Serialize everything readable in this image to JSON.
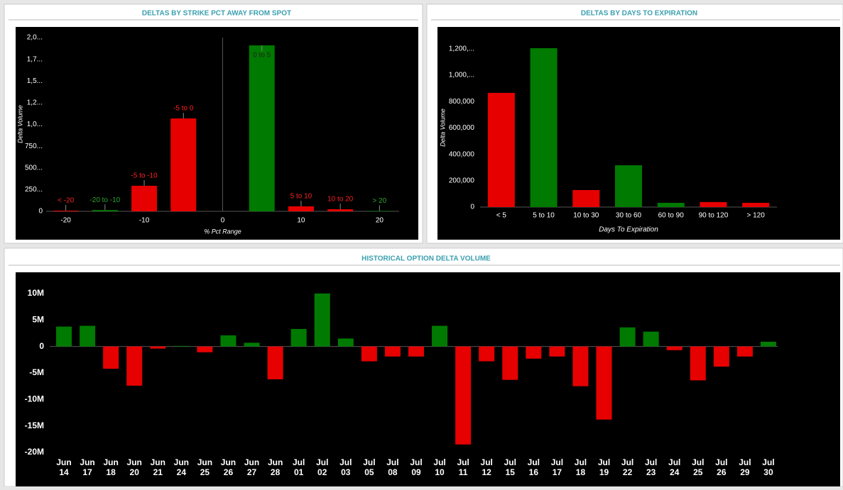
{
  "chart_data": [
    {
      "type": "bar",
      "title": "DELTAS BY STRIKE PCT AWAY FROM SPOT",
      "x_label": "% Pct Range",
      "y_label": "Delta Volume",
      "x": [
        -20,
        -15,
        -10,
        -5,
        5,
        10,
        15,
        20
      ],
      "categories": [
        "< -20",
        "-20 to -10",
        "-5 to -10",
        "-5 to 0",
        "0 to 5",
        "5 to 10",
        "10 to 20",
        "> 20"
      ],
      "values": [
        8000,
        15000,
        294000,
        1069000,
        1910000,
        57000,
        24000,
        5000
      ],
      "colors": [
        "#e60000",
        "#007a00",
        "#e60000",
        "#e60000",
        "#007a00",
        "#e60000",
        "#e60000",
        "#007a00"
      ],
      "xlim": [
        -22.5,
        22.5
      ],
      "xticks": [
        -20,
        -10,
        0,
        10,
        20
      ],
      "ylim": [
        0,
        2000000
      ],
      "yticks": [
        0,
        {
          "value": 250000,
          "label": "250..."
        },
        {
          "value": 500000,
          "label": "500..."
        },
        {
          "value": 750000,
          "label": "750..."
        },
        {
          "value": 1000000,
          "label": "1,0..."
        },
        {
          "value": 1250000,
          "label": "1,2..."
        },
        {
          "value": 1500000,
          "label": "1,5..."
        },
        {
          "value": 1750000,
          "label": "1,7..."
        },
        {
          "value": 2000000,
          "label": "2,0..."
        }
      ]
    },
    {
      "type": "bar",
      "title": "DELTAS BY DAYS TO EXPIRATION",
      "x_label": "Days To Expiration",
      "y_label": "Delta Volume",
      "categories": [
        "< 5",
        "5 to 10",
        "10 to 30",
        "30 to 60",
        "60 to 90",
        "90 to 120",
        "> 120"
      ],
      "values": [
        866000,
        1205000,
        129000,
        317000,
        32000,
        38000,
        32000
      ],
      "colors": [
        "#e60000",
        "#007a00",
        "#e60000",
        "#007a00",
        "#007a00",
        "#e60000",
        "#e60000"
      ],
      "ylim": [
        0,
        1280000
      ],
      "yticks": [
        0,
        {
          "value": 200000,
          "label": "200,000"
        },
        {
          "value": 400000,
          "label": "400,000"
        },
        {
          "value": 600000,
          "label": "600,000"
        },
        {
          "value": 800000,
          "label": "800,000"
        },
        {
          "value": 1000000,
          "label": "1,000,..."
        },
        {
          "value": 1200000,
          "label": "1,200,..."
        }
      ]
    },
    {
      "type": "bar",
      "title": "HISTORICAL OPTION DELTA VOLUME",
      "categories": [
        [
          "Jun",
          "14"
        ],
        [
          "Jun",
          "17"
        ],
        [
          "Jun",
          "18"
        ],
        [
          "Jun",
          "20"
        ],
        [
          "Jun",
          "21"
        ],
        [
          "Jun",
          "24"
        ],
        [
          "Jun",
          "25"
        ],
        [
          "Jun",
          "26"
        ],
        [
          "Jun",
          "27"
        ],
        [
          "Jun",
          "28"
        ],
        [
          "Jul",
          "01"
        ],
        [
          "Jul",
          "02"
        ],
        [
          "Jul",
          "03"
        ],
        [
          "Jul",
          "05"
        ],
        [
          "Jul",
          "08"
        ],
        [
          "Jul",
          "09"
        ],
        [
          "Jul",
          "10"
        ],
        [
          "Jul",
          "11"
        ],
        [
          "Jul",
          "12"
        ],
        [
          "Jul",
          "15"
        ],
        [
          "Jul",
          "16"
        ],
        [
          "Jul",
          "17"
        ],
        [
          "Jul",
          "18"
        ],
        [
          "Jul",
          "19"
        ],
        [
          "Jul",
          "22"
        ],
        [
          "Jul",
          "23"
        ],
        [
          "Jul",
          "24"
        ],
        [
          "Jul",
          "25"
        ],
        [
          "Jul",
          "26"
        ],
        [
          "Jul",
          "29"
        ],
        [
          "Jul",
          "30"
        ]
      ],
      "values": [
        3750000,
        3900000,
        -4200000,
        -7400000,
        -400000,
        100000,
        -1100000,
        2100000,
        700000,
        -6200000,
        3300000,
        10000000,
        1500000,
        -2800000,
        -1900000,
        -1900000,
        3900000,
        -18500000,
        -2800000,
        -6300000,
        -2300000,
        -1900000,
        -7500000,
        -13800000,
        3600000,
        2800000,
        -700000,
        -6400000,
        -3800000,
        -1900000,
        900000
      ],
      "positive_color": "#007a00",
      "negative_color": "#e60000",
      "ylim": [
        -20000000,
        14000000
      ],
      "yticks": [
        {
          "value": -20000000,
          "label": "-20M"
        },
        {
          "value": -15000000,
          "label": "-15M"
        },
        {
          "value": -10000000,
          "label": "-10M"
        },
        {
          "value": -5000000,
          "label": "-5M"
        },
        0,
        {
          "value": 5000000,
          "label": "5M"
        },
        {
          "value": 10000000,
          "label": "10M"
        }
      ]
    }
  ]
}
